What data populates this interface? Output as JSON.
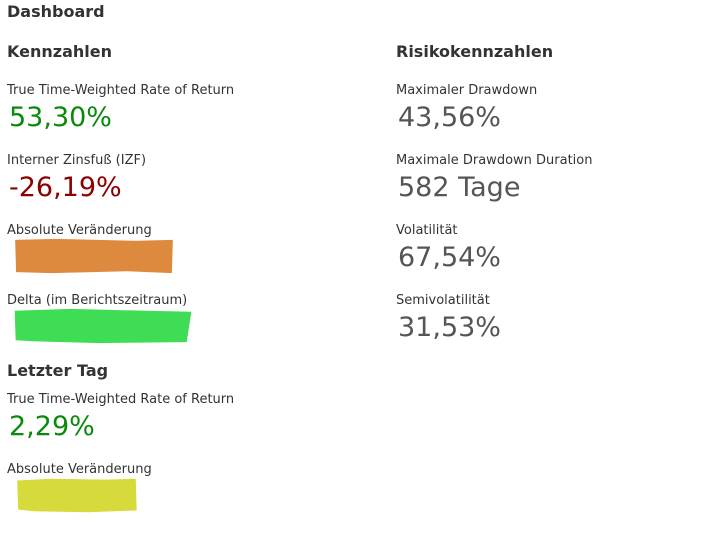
{
  "page_title": "Dashboard",
  "kennzahlen": {
    "title": "Kennzahlen",
    "ttwror_label": "True Time-Weighted Rate of Return",
    "ttwror_value": "53,30%",
    "izf_label": "Interner Zinsfuß (IZF)",
    "izf_value": "-26,19%",
    "abs_change_label": "Absolute Veränderung",
    "delta_label": "Delta (im Berichtszeitraum)"
  },
  "risiko": {
    "title": "Risikokennzahlen",
    "max_dd_label": "Maximaler Drawdown",
    "max_dd_value": "43,56%",
    "max_dd_duration_label": "Maximale Drawdown Duration",
    "max_dd_duration_value": "582 Tage",
    "volatility_label": "Volatilität",
    "volatility_value": "67,54%",
    "semivolatility_label": "Semivolatilität",
    "semivolatility_value": "31,53%"
  },
  "letzter_tag": {
    "title": "Letzter Tag",
    "ttwror_label": "True Time-Weighted Rate of Return",
    "ttwror_value": "2,29%",
    "abs_change_label": "Absolute Veränderung"
  },
  "colors": {
    "positive": "#0a8a0a",
    "negative": "#8b0000",
    "redaction_orange": "#dd8a3e",
    "redaction_green": "#3fdc55",
    "redaction_yellow": "#d6da3a"
  }
}
